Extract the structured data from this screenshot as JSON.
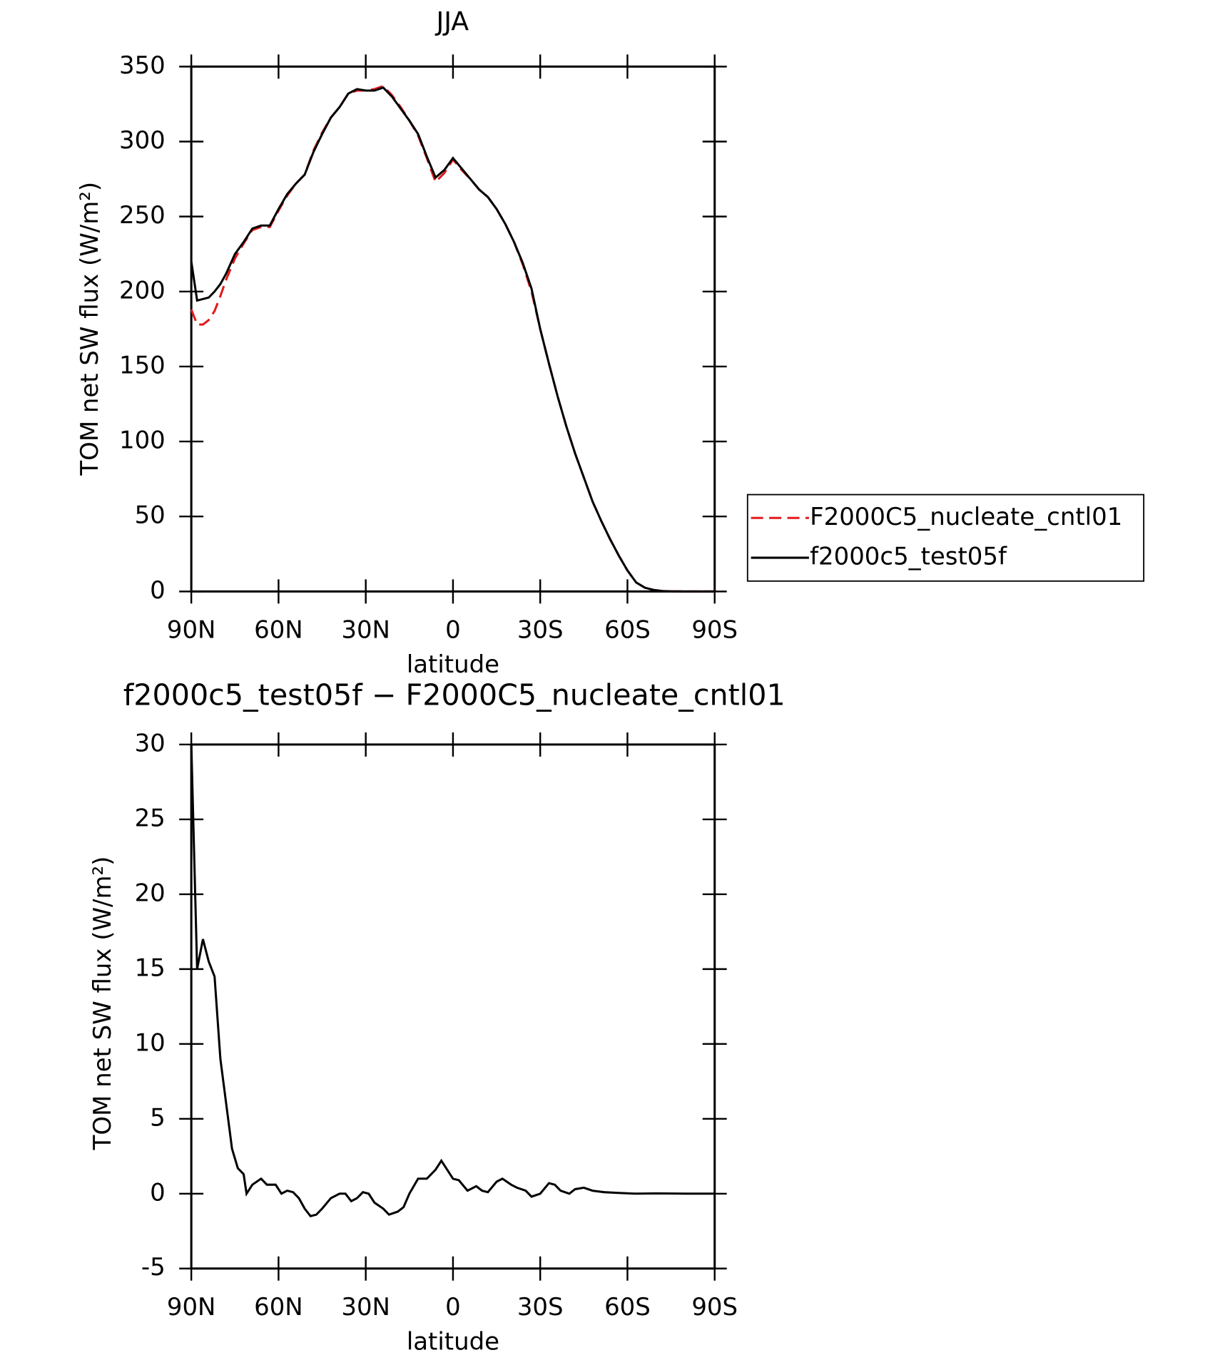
{
  "chart_data": [
    {
      "type": "line",
      "title": "JJA",
      "xlabel": "latitude",
      "ylabel": "TOM net SW flux (W/m²)",
      "x": [
        90,
        88,
        86,
        84,
        82,
        80,
        78,
        75,
        72,
        69,
        66,
        63,
        60,
        57,
        54,
        51,
        48,
        45,
        42,
        39,
        36,
        33,
        30,
        27,
        24,
        21,
        18,
        15,
        12,
        9,
        6,
        3,
        0,
        -3,
        -6,
        -9,
        -12,
        -15,
        -18,
        -21,
        -24,
        -27,
        -30,
        -33,
        -36,
        -39,
        -42,
        -45,
        -48,
        -51,
        -54,
        -57,
        -60,
        -63,
        -66,
        -69,
        -72,
        -75,
        -80,
        -85,
        -90
      ],
      "series": [
        {
          "name": "F2000C5_nucleate_cntl01",
          "color": "#e31a1c",
          "dash": true,
          "values": [
            188,
            178,
            178,
            181,
            187,
            197,
            208,
            222,
            232,
            241,
            243,
            243,
            254,
            264,
            272,
            278,
            294,
            306,
            316,
            323,
            332,
            334,
            334,
            335,
            337,
            331,
            323,
            314,
            304,
            289,
            273,
            279,
            288,
            281,
            275,
            268,
            263,
            255,
            245,
            233,
            218,
            200,
            175,
            152,
            130,
            110,
            92,
            76,
            60,
            47,
            35,
            24,
            14,
            6,
            2.5,
            1,
            0.3,
            0.1,
            0,
            0,
            0
          ]
        },
        {
          "name": "f2000c5_test05f",
          "color": "#000000",
          "dash": false,
          "values": [
            220,
            194,
            195,
            196,
            200,
            205,
            212,
            225,
            233,
            242,
            244,
            244,
            255,
            265,
            272,
            278,
            293,
            305,
            316,
            323,
            332,
            335,
            334,
            334,
            336,
            330,
            322,
            314,
            305,
            290,
            276,
            281,
            289,
            282,
            275,
            268,
            263,
            255,
            245,
            233,
            219,
            202,
            175,
            152,
            130,
            110,
            92,
            76,
            60,
            47,
            35,
            24,
            14,
            6,
            2.5,
            1,
            0.3,
            0.1,
            0,
            0,
            0
          ]
        }
      ],
      "xlim": [
        90,
        -90
      ],
      "xticks": [
        {
          "value": 90,
          "label": "90N"
        },
        {
          "value": 60,
          "label": "60N"
        },
        {
          "value": 30,
          "label": "30N"
        },
        0,
        {
          "value": -30,
          "label": "30S"
        },
        {
          "value": -60,
          "label": "60S"
        },
        {
          "value": -90,
          "label": "90S"
        }
      ],
      "ylim": [
        0,
        350
      ],
      "yticks": [
        0,
        50,
        100,
        150,
        200,
        250,
        300,
        350
      ],
      "legend": "right"
    },
    {
      "type": "line",
      "title": "f2000c5_test05f − F2000C5_nucleate_cntl01",
      "xlabel": "latitude",
      "ylabel": "TOM net SW flux (W/m²)",
      "x": [
        90,
        88,
        86,
        84,
        82,
        80,
        78,
        76,
        74,
        72,
        71,
        69,
        66,
        64,
        61,
        59,
        57,
        55,
        53,
        51,
        49,
        47,
        45,
        42,
        39,
        37,
        35,
        33,
        31,
        29,
        27,
        24,
        22,
        19,
        17,
        15,
        12,
        9,
        6,
        4,
        2,
        0,
        -2,
        -5,
        -8,
        -10,
        -12,
        -15,
        -17,
        -20,
        -22,
        -25,
        -27,
        -30,
        -33,
        -35,
        -37,
        -40,
        -42,
        -45,
        -48,
        -52,
        -57,
        -63,
        -70,
        -80,
        -90
      ],
      "values": [
        30,
        15,
        17,
        15.5,
        14.5,
        9,
        6,
        3,
        1.7,
        1.3,
        0,
        0.6,
        1,
        0.6,
        0.6,
        0,
        0.2,
        0.1,
        -0.3,
        -1,
        -1.5,
        -1.4,
        -1,
        -0.3,
        0,
        0,
        -0.5,
        -0.3,
        0.1,
        0,
        -0.6,
        -1,
        -1.4,
        -1.2,
        -0.9,
        0,
        1,
        1,
        1.6,
        2.2,
        1.6,
        1,
        0.9,
        0.2,
        0.5,
        0.2,
        0.1,
        0.8,
        1,
        0.6,
        0.4,
        0.2,
        -0.2,
        0,
        0.7,
        0.6,
        0.2,
        0,
        0.3,
        0.4,
        0.2,
        0.1,
        0.05,
        0,
        0.02,
        0,
        0
      ],
      "color": "#000000",
      "xlim": [
        90,
        -90
      ],
      "xticks": [
        {
          "value": 90,
          "label": "90N"
        },
        {
          "value": 60,
          "label": "60N"
        },
        {
          "value": 30,
          "label": "30N"
        },
        0,
        {
          "value": -30,
          "label": "30S"
        },
        {
          "value": -60,
          "label": "60S"
        },
        {
          "value": -90,
          "label": "90S"
        }
      ],
      "ylim": [
        -5,
        30
      ],
      "yticks": [
        -5,
        0,
        5,
        10,
        15,
        20,
        25,
        30
      ]
    }
  ]
}
